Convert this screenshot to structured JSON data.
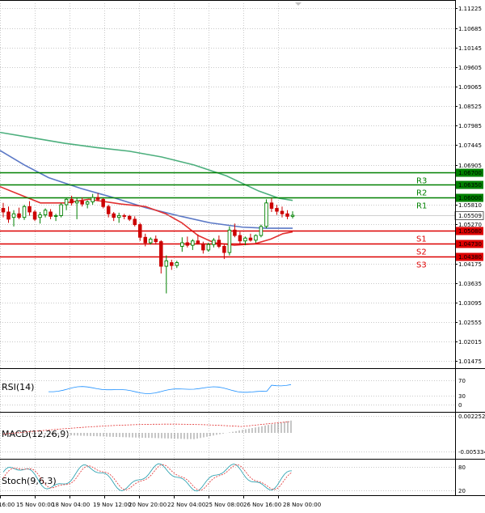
{
  "chart_data": {
    "type": "candlestick",
    "instrument_note": "",
    "price_axis": {
      "ticks": [
        "1.11225",
        "1.10685",
        "1.10145",
        "1.09605",
        "1.09065",
        "1.08525",
        "1.07985",
        "1.07445",
        "1.06905",
        "1.05810",
        "1.05270",
        "1.04175",
        "1.03635",
        "1.03095",
        "1.02555",
        "1.02015",
        "1.01475"
      ],
      "min": 1.0135,
      "max": 1.1137
    },
    "time_axis": {
      "labels": [
        "16:00",
        "15 Nov 00:00",
        "18 Nov 04:00",
        "19 Nov 12:00",
        "20 Nov 20:00",
        "22 Nov 04:00",
        "25 Nov 08:00",
        "26 Nov 16:00",
        "28 Nov 00:00"
      ]
    },
    "levels": [
      {
        "name": "R3",
        "value": "1.06700",
        "price": 1.067,
        "color": "#008000"
      },
      {
        "name": "R2",
        "value": "1.06350",
        "price": 1.0635,
        "color": "#008000"
      },
      {
        "name": "R1",
        "value": "1.06000",
        "price": 1.06,
        "color": "#008000"
      },
      {
        "name": "S1",
        "value": "1.05080",
        "price": 1.0508,
        "color": "#dd0000"
      },
      {
        "name": "S2",
        "value": "1.04730",
        "price": 1.0473,
        "color": "#dd0000"
      },
      {
        "name": "S3",
        "value": "1.04380",
        "price": 1.0438,
        "color": "#dd0000"
      }
    ],
    "current_price": {
      "value": "1.05509",
      "price": 1.05509
    },
    "candles": [
      [
        1.057,
        1.0585,
        1.0545,
        1.056
      ],
      [
        1.056,
        1.0575,
        1.053,
        1.054
      ],
      [
        1.0545,
        1.0565,
        1.052,
        1.0555
      ],
      [
        1.0555,
        1.0572,
        1.054,
        1.0545
      ],
      [
        1.0545,
        1.058,
        1.0538,
        1.0575
      ],
      [
        1.0575,
        1.059,
        1.055,
        1.056
      ],
      [
        1.056,
        1.0565,
        1.0535,
        1.054
      ],
      [
        1.0545,
        1.056,
        1.0528,
        1.0552
      ],
      [
        1.0552,
        1.057,
        1.0545,
        1.0565
      ],
      [
        1.056,
        1.0568,
        1.054,
        1.0548
      ],
      [
        1.0548,
        1.0555,
        1.0535,
        1.055
      ],
      [
        1.055,
        1.0585,
        1.0545,
        1.058
      ],
      [
        1.058,
        1.06,
        1.0565,
        1.0595
      ],
      [
        1.0595,
        1.0605,
        1.0578,
        1.0585
      ],
      [
        1.0585,
        1.0598,
        1.054,
        1.059
      ],
      [
        1.059,
        1.06,
        1.0575,
        1.0582
      ],
      [
        1.0582,
        1.0592,
        1.057,
        1.0588
      ],
      [
        1.0588,
        1.061,
        1.058,
        1.06
      ],
      [
        1.06,
        1.0612,
        1.059,
        1.0595
      ],
      [
        1.0595,
        1.0598,
        1.057,
        1.0575
      ],
      [
        1.0575,
        1.058,
        1.0545,
        1.0555
      ],
      [
        1.0555,
        1.056,
        1.0535,
        1.0545
      ],
      [
        1.0545,
        1.0558,
        1.053,
        1.055
      ],
      [
        1.055,
        1.0555,
        1.054,
        1.0548
      ],
      [
        1.0548,
        1.0552,
        1.0535,
        1.054
      ],
      [
        1.054,
        1.0548,
        1.052,
        1.0525
      ],
      [
        1.0525,
        1.053,
        1.048,
        1.049
      ],
      [
        1.049,
        1.05,
        1.0465,
        1.0475
      ],
      [
        1.0475,
        1.049,
        1.047,
        1.0485
      ],
      [
        1.0485,
        1.0495,
        1.047,
        1.0478
      ],
      [
        1.0478,
        1.0482,
        1.039,
        1.041
      ],
      [
        1.041,
        1.044,
        1.0335,
        1.0425
      ],
      [
        1.042,
        1.0428,
        1.04,
        1.0412
      ],
      [
        1.0412,
        1.0425,
        1.0405,
        1.042
      ],
      [
        1.0465,
        1.049,
        1.045,
        1.0475
      ],
      [
        1.0475,
        1.0492,
        1.0462,
        1.0468
      ],
      [
        1.0468,
        1.0485,
        1.0455,
        1.048
      ],
      [
        1.048,
        1.0498,
        1.047,
        1.0472
      ],
      [
        1.0472,
        1.0478,
        1.0445,
        1.0455
      ],
      [
        1.0455,
        1.0475,
        1.045,
        1.047
      ],
      [
        1.047,
        1.0488,
        1.0462,
        1.0482
      ],
      [
        1.0482,
        1.0495,
        1.046,
        1.0465
      ],
      [
        1.0465,
        1.047,
        1.043,
        1.0448
      ],
      [
        1.0448,
        1.052,
        1.044,
        1.051
      ],
      [
        1.051,
        1.0528,
        1.049,
        1.0495
      ],
      [
        1.0495,
        1.0505,
        1.047,
        1.048
      ],
      [
        1.048,
        1.0492,
        1.0468,
        1.0488
      ],
      [
        1.0488,
        1.05,
        1.0478,
        1.0482
      ],
      [
        1.0482,
        1.0498,
        1.0475,
        1.0495
      ],
      [
        1.0495,
        1.0525,
        1.049,
        1.052
      ],
      [
        1.052,
        1.0595,
        1.0515,
        1.0585
      ],
      [
        1.0585,
        1.0598,
        1.056,
        1.057
      ],
      [
        1.057,
        1.058,
        1.0552,
        1.0562
      ],
      [
        1.0562,
        1.0575,
        1.0545,
        1.0555
      ],
      [
        1.0555,
        1.0565,
        1.054,
        1.0548
      ],
      [
        1.0548,
        1.0562,
        1.0542,
        1.0551
      ]
    ],
    "ma_long_color": "#4caf7d",
    "ma_mid_color": "#5b78c6",
    "ma_short_color": "#e23030",
    "indicators": [
      {
        "name": "RSI(14)",
        "ticks": [
          "70",
          "30",
          "0"
        ],
        "color": "#1e90ff"
      },
      {
        "name": "MACD(12,26,9)",
        "ticks": [
          "0.002252",
          "-0.005334"
        ],
        "color": "#e23030"
      },
      {
        "name": "Stoch(9,6,3)",
        "ticks": [
          "80",
          "20"
        ],
        "color": "#1a9aaa"
      }
    ]
  }
}
